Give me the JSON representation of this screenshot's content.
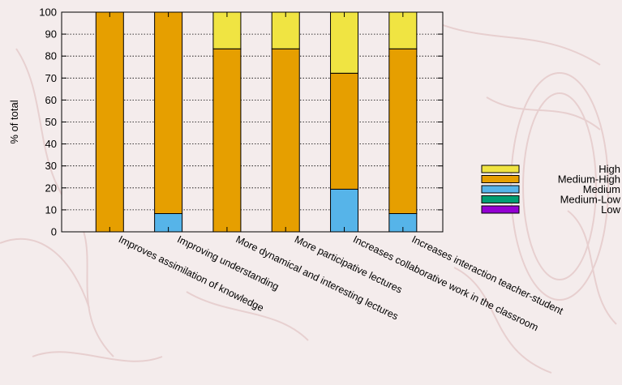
{
  "chart_data": {
    "type": "bar",
    "stacked": true,
    "title": "",
    "xlabel": "",
    "ylabel": "% of total",
    "ylim": [
      0,
      100
    ],
    "yticks": [
      "0",
      "10",
      "20",
      "30",
      "40",
      "50",
      "60",
      "70",
      "80",
      "90",
      "100"
    ],
    "grid": true,
    "legend_position": "right",
    "categories": [
      "Improves assimilation of knowledge",
      "Improving understanding",
      "More dynamical and interesting lectures",
      "More participative lectures",
      "Increases collaborative work in the classroom",
      "Increases interaction teacher-student"
    ],
    "series": [
      {
        "name": "Low",
        "color": "#9400d3",
        "values": [
          0,
          0,
          0,
          0,
          0,
          0
        ]
      },
      {
        "name": "Medium-Low",
        "color": "#009e73",
        "values": [
          0,
          0,
          0,
          0,
          0,
          0
        ]
      },
      {
        "name": "Medium",
        "color": "#56b4e9",
        "values": [
          0,
          8.3,
          0,
          0,
          19.4,
          8.3
        ]
      },
      {
        "name": "Medium-High",
        "color": "#e69f00",
        "values": [
          100,
          91.7,
          83.3,
          83.3,
          52.8,
          75.0
        ]
      },
      {
        "name": "High",
        "color": "#f0e442",
        "values": [
          0,
          0,
          16.7,
          16.7,
          27.8,
          16.7
        ]
      }
    ],
    "legend_order": [
      "High",
      "Medium-High",
      "Medium",
      "Medium-Low",
      "Low"
    ]
  }
}
